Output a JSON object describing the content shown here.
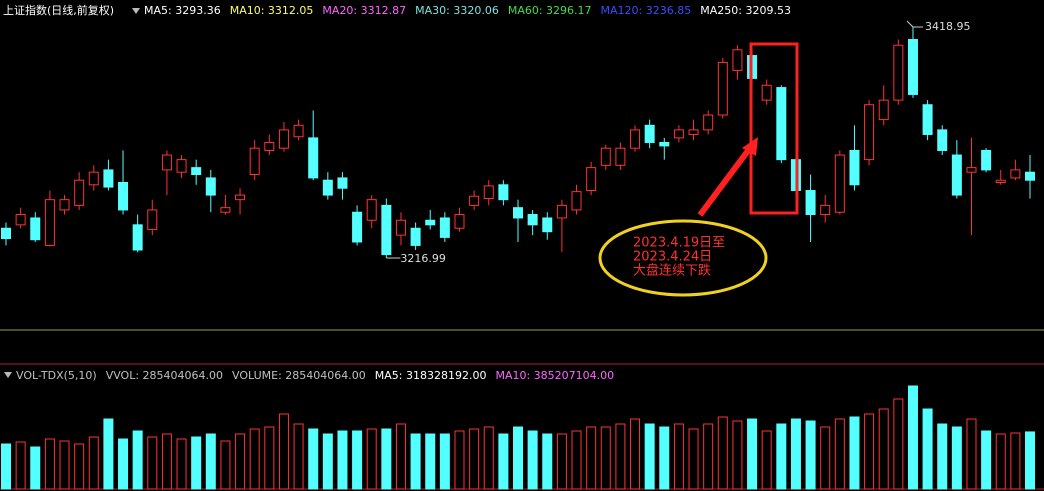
{
  "header": {
    "title": "上证指数(日线,前复权)",
    "items": [
      {
        "text": "MA5: 3293.36",
        "color": "#ffffff"
      },
      {
        "text": "MA10: 3312.05",
        "color": "#ffff66"
      },
      {
        "text": "MA20: 3312.87",
        "color": "#ff66ff"
      },
      {
        "text": "MA30: 3320.06",
        "color": "#7fe0e0"
      },
      {
        "text": "MA60: 3296.17",
        "color": "#44dd44"
      },
      {
        "text": "MA120: 3236.85",
        "color": "#3a4cff"
      },
      {
        "text": "MA250: 3209.53",
        "color": "#ffffff"
      }
    ]
  },
  "chart_data": {
    "type": "candlestick",
    "up_color": "#ff3232",
    "down_color": "#54ffff",
    "high_label": "3418.95",
    "low_label": "3216.99",
    "note": [
      "2023.4.19日至",
      "2023.4.24日",
      "大盘连续下跌"
    ],
    "ohlc": [
      [
        3243,
        3248,
        3228,
        3234
      ],
      [
        3246,
        3261,
        3243,
        3255
      ],
      [
        3252,
        3257,
        3231,
        3233
      ],
      [
        3228,
        3276,
        3227,
        3268
      ],
      [
        3259,
        3272,
        3255,
        3268
      ],
      [
        3263,
        3292,
        3259,
        3285
      ],
      [
        3281,
        3298,
        3276,
        3292
      ],
      [
        3294,
        3303,
        3276,
        3279
      ],
      [
        3283,
        3311,
        3255,
        3259
      ],
      [
        3246,
        3255,
        3222,
        3224
      ],
      [
        3242,
        3268,
        3237,
        3259
      ],
      [
        3294,
        3311,
        3272,
        3307
      ],
      [
        3292,
        3307,
        3287,
        3303
      ],
      [
        3296,
        3303,
        3281,
        3290
      ],
      [
        3287,
        3294,
        3257,
        3272
      ],
      [
        3257,
        3272,
        3255,
        3261
      ],
      [
        3268,
        3278,
        3255,
        3272
      ],
      [
        3290,
        3320,
        3285,
        3313
      ],
      [
        3311,
        3325,
        3307,
        3318
      ],
      [
        3313,
        3336,
        3310,
        3329
      ],
      [
        3323,
        3338,
        3320,
        3333
      ],
      [
        3322,
        3346,
        3285,
        3287
      ],
      [
        3285,
        3292,
        3268,
        3272
      ],
      [
        3287,
        3292,
        3268,
        3278
      ],
      [
        3257,
        3263,
        3228,
        3231
      ],
      [
        3250,
        3272,
        3243,
        3268
      ],
      [
        3263,
        3269,
        3216.99,
        3220
      ],
      [
        3237,
        3257,
        3228,
        3250
      ],
      [
        3243,
        3248,
        3224,
        3228
      ],
      [
        3250,
        3259,
        3242,
        3246
      ],
      [
        3252,
        3257,
        3231,
        3235
      ],
      [
        3243,
        3261,
        3240,
        3255
      ],
      [
        3263,
        3276,
        3259,
        3271
      ],
      [
        3269,
        3285,
        3263,
        3280
      ],
      [
        3281,
        3285,
        3263,
        3268
      ],
      [
        3261,
        3268,
        3231,
        3252
      ],
      [
        3255,
        3259,
        3237,
        3246
      ],
      [
        3252,
        3257,
        3233,
        3240
      ],
      [
        3252,
        3268,
        3222,
        3263
      ],
      [
        3259,
        3281,
        3255,
        3275
      ],
      [
        3276,
        3301,
        3272,
        3296
      ],
      [
        3298,
        3316,
        3294,
        3313
      ],
      [
        3298,
        3318,
        3294,
        3313
      ],
      [
        3313,
        3333,
        3310,
        3329
      ],
      [
        3333,
        3338,
        3313,
        3318
      ],
      [
        3318,
        3322,
        3303,
        3315
      ],
      [
        3322,
        3333,
        3318,
        3329
      ],
      [
        3325,
        3338,
        3320,
        3329
      ],
      [
        3329,
        3346,
        3325,
        3342
      ],
      [
        3342,
        3392,
        3339,
        3388
      ],
      [
        3381,
        3403,
        3373,
        3399
      ],
      [
        3394,
        3399,
        3371,
        3374
      ],
      [
        3355,
        3373,
        3351,
        3368
      ],
      [
        3366,
        3368,
        3300,
        3303
      ],
      [
        3303,
        3307,
        3272,
        3276
      ],
      [
        3276,
        3290,
        3231,
        3255
      ],
      [
        3255,
        3272,
        3248,
        3263
      ],
      [
        3257,
        3311,
        3255,
        3307
      ],
      [
        3311,
        3333,
        3276,
        3281
      ],
      [
        3303,
        3355,
        3298,
        3351
      ],
      [
        3338,
        3368,
        3333,
        3355
      ],
      [
        3355,
        3408,
        3351,
        3403
      ],
      [
        3408,
        3418.95,
        3357,
        3360
      ],
      [
        3351,
        3355,
        3320,
        3325
      ],
      [
        3329,
        3333,
        3307,
        3311
      ],
      [
        3307,
        3320,
        3269,
        3272
      ],
      [
        3292,
        3322,
        3237,
        3296
      ],
      [
        3311,
        3313,
        3292,
        3294
      ],
      [
        3283,
        3294,
        3281,
        3285
      ],
      [
        3287,
        3303,
        3285,
        3294
      ],
      [
        3292,
        3307,
        3269,
        3285
      ]
    ]
  },
  "volume": {
    "header": [
      {
        "text": "VOL-TDX(5,10)",
        "color": "#c0c0c0"
      },
      {
        "text": "VVOL: 285404064.00",
        "color": "#c0c0c0"
      },
      {
        "text": "VOLUME: 285404064.00",
        "color": "#c0c0c0"
      },
      {
        "text": "MA5: 318328192.00",
        "color": "#ffffff"
      },
      {
        "text": "MA10: 385207104.00",
        "color": "#ff66ff"
      }
    ],
    "values": [
      225000000,
      235000000,
      210000000,
      250000000,
      240000000,
      225000000,
      260000000,
      350000000,
      250000000,
      290000000,
      260000000,
      275000000,
      250000000,
      260000000,
      275000000,
      240000000,
      275000000,
      300000000,
      310000000,
      375000000,
      325000000,
      300000000,
      275000000,
      290000000,
      290000000,
      300000000,
      300000000,
      325000000,
      275000000,
      275000000,
      275000000,
      290000000,
      300000000,
      310000000,
      275000000,
      310000000,
      290000000,
      275000000,
      275000000,
      290000000,
      310000000,
      310000000,
      325000000,
      350000000,
      325000000,
      310000000,
      325000000,
      300000000,
      325000000,
      360000000,
      340000000,
      350000000,
      290000000,
      325000000,
      350000000,
      340000000,
      310000000,
      350000000,
      360000000,
      375000000,
      400000000,
      450000000,
      515000000,
      400000000,
      325000000,
      310000000,
      350000000,
      290000000,
      275000000,
      280000000,
      285404064
    ]
  }
}
